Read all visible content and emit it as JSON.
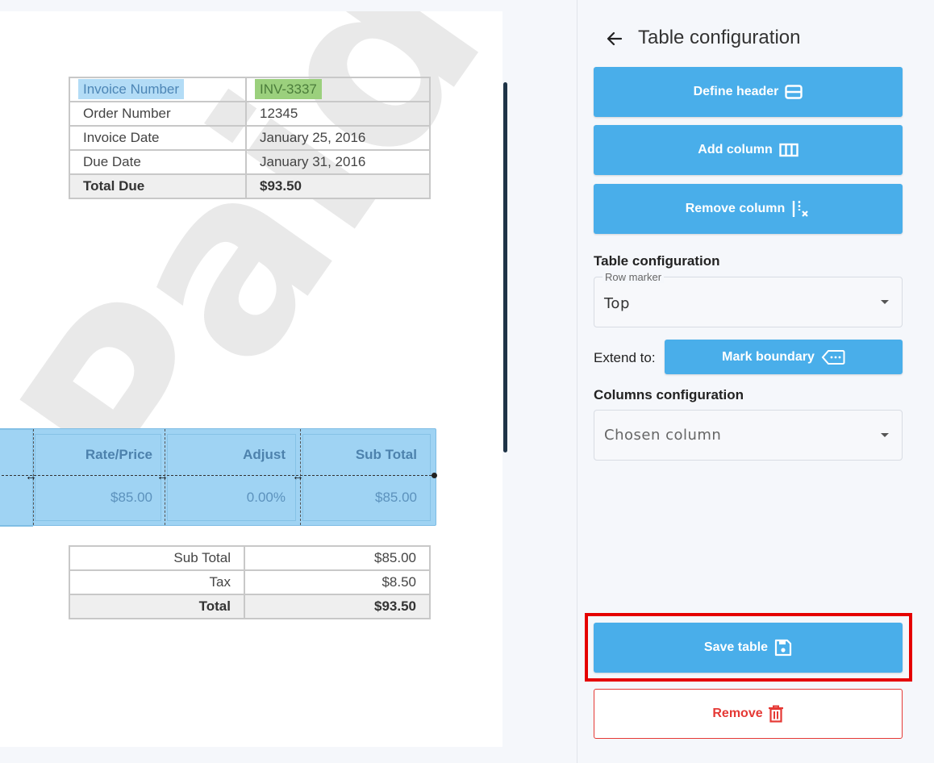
{
  "document": {
    "info_table": [
      {
        "key": "Invoice Number",
        "value": "INV-3337"
      },
      {
        "key": "Order Number",
        "value": "12345"
      },
      {
        "key": "Invoice Date",
        "value": "January 25, 2016"
      },
      {
        "key": "Due Date",
        "value": "January 31, 2016"
      },
      {
        "key": "Total Due",
        "value": "$93.50"
      }
    ],
    "line_items": {
      "headers": [
        "Rate/Price",
        "Adjust",
        "Sub Total"
      ],
      "row": [
        "$85.00",
        "0.00%",
        "$85.00"
      ]
    },
    "totals_table": [
      {
        "key": "Sub Total",
        "value": "$85.00"
      },
      {
        "key": "Tax",
        "value": "$8.50"
      },
      {
        "key": "Total",
        "value": "$93.50"
      }
    ]
  },
  "panel": {
    "title": "Table configuration",
    "buttons": {
      "define_header": "Define header",
      "add_column": "Add column",
      "remove_column": "Remove column",
      "mark_boundary": "Mark boundary",
      "save_table": "Save table",
      "remove": "Remove"
    },
    "table_config_label": "Table configuration",
    "row_marker": {
      "legend": "Row marker",
      "value": "Top"
    },
    "extend_label": "Extend to:",
    "columns_config_label": "Columns configuration",
    "chosen_column": {
      "placeholder": "Chosen column"
    }
  },
  "colors": {
    "primary": "#49aeea",
    "danger": "#e53935",
    "highlight": "#e50000"
  }
}
